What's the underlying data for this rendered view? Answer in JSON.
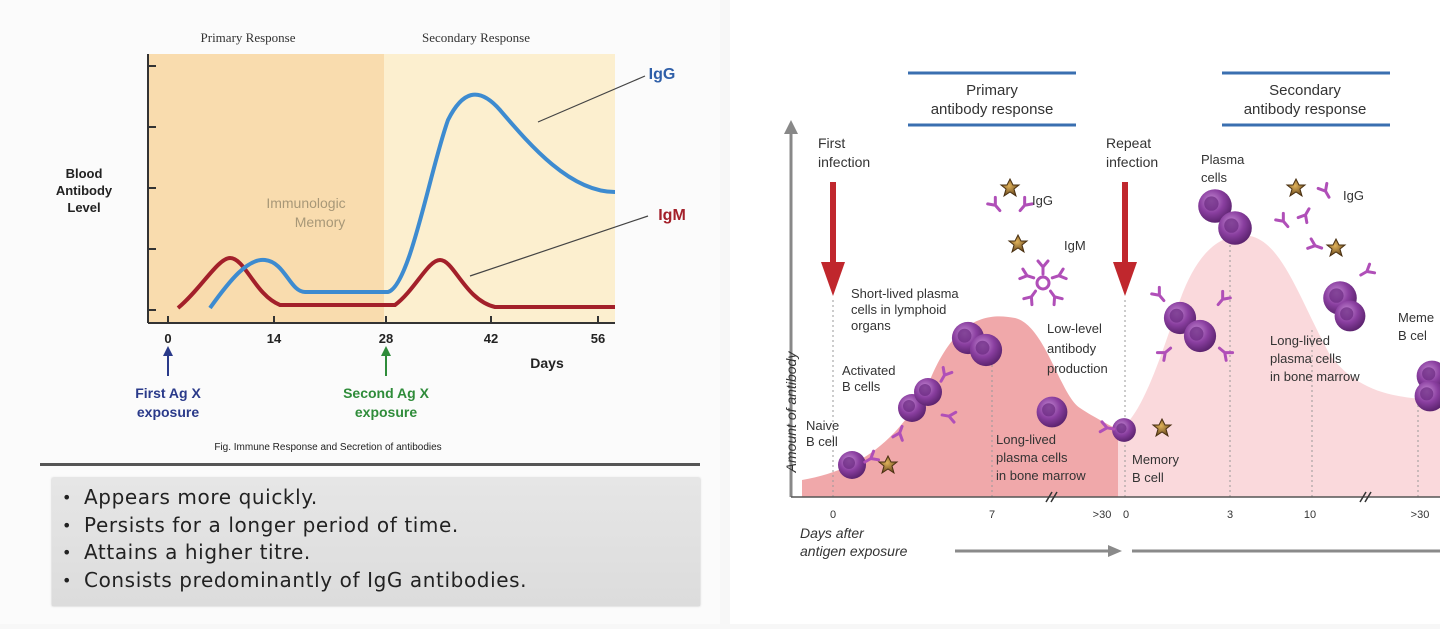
{
  "left_chart": {
    "phase_labels": {
      "primary": "Primary Response",
      "secondary": "Secondary Response"
    },
    "ylabel_lines": [
      "Blood",
      "Antibody",
      "Level"
    ],
    "xlabel": "Days",
    "x_ticks": [
      "0",
      "14",
      "28",
      "42",
      "56"
    ],
    "memory_lines": [
      "Immunologic",
      "Memory"
    ],
    "series_labels": {
      "igg": "IgG",
      "igm": "IgM"
    },
    "first_exposure_lines": [
      "First Ag X",
      "exposure"
    ],
    "second_exposure_lines": [
      "Second Ag X",
      "exposure"
    ],
    "caption": "Fig. Immune Response and Secretion of antibodies",
    "colors": {
      "igg": "#3d8bd0",
      "igm": "#a3202a",
      "primary_bg": "#f9dcae",
      "secondary_bg": "#fcefcf",
      "first_arrow": "#2a3a8a",
      "second_arrow": "#2f8c3a"
    }
  },
  "bullets": [
    "Appears more quickly.",
    "Persists for a longer period of time.",
    "Attains a higher titre.",
    "Consists predominantly of IgG antibodies."
  ],
  "right_diagram": {
    "primary_title_lines": [
      "Primary",
      "antibody response"
    ],
    "secondary_title_lines": [
      "Secondary",
      "antibody response"
    ],
    "ylabel": "Amount of antibody",
    "xlabel_lines": [
      "Days after",
      "antigen exposure"
    ],
    "first_infection_lines": [
      "First",
      "infection"
    ],
    "repeat_infection_lines": [
      "Repeat",
      "infection"
    ],
    "labels": {
      "short_lived_lines": [
        "Short-lived plasma",
        "cells in lymphoid",
        "organs"
      ],
      "activated_lines": [
        "Activated",
        "B cells"
      ],
      "naive_lines": [
        "Naive",
        "B cell"
      ],
      "low_level_lines": [
        "Low-level",
        "antibody",
        "production"
      ],
      "long_lived_primary_lines": [
        "Long-lived",
        "plasma cells",
        "in bone marrow"
      ],
      "memory_lines": [
        "Memory",
        "B cell"
      ],
      "plasma_lines": [
        "Plasma",
        "cells"
      ],
      "long_lived_secondary_lines": [
        "Long-lived",
        "plasma cells",
        "in bone marrow"
      ],
      "meme_lines": [
        "Meme",
        "B cel"
      ],
      "igg_1": "IgG",
      "igm": "IgM",
      "igg_2": "IgG"
    },
    "x_ticks_primary": [
      "0",
      "7",
      ">30"
    ],
    "x_ticks_secondary": [
      "0",
      "3",
      "10",
      ">30"
    ],
    "colors": {
      "primary_fill": "#f0a8aa",
      "secondary_fill": "#fad9dc",
      "arrow_red": "#c0272d",
      "cell_purple": "#8a3fa0",
      "title_bar": "#3a6fb0"
    }
  }
}
